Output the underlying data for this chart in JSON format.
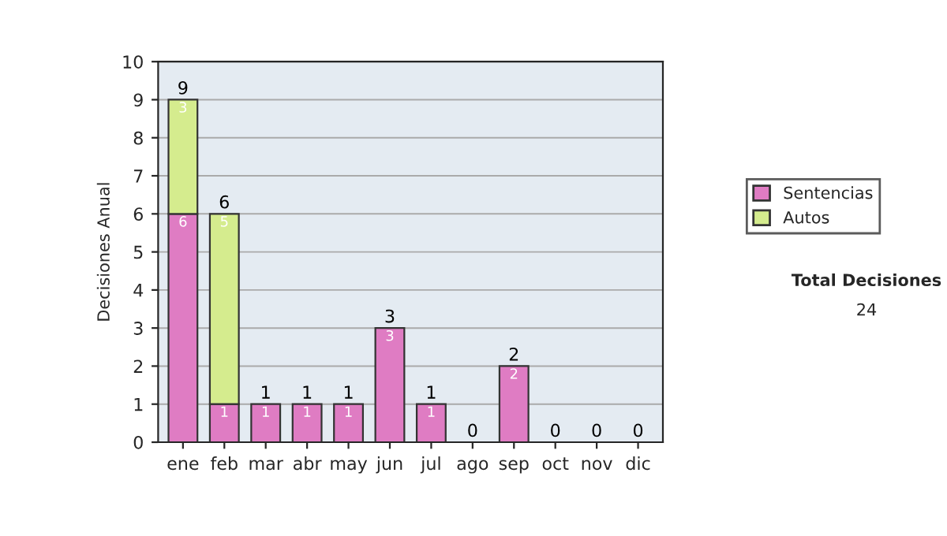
{
  "chart_data": {
    "type": "bar",
    "stacked": true,
    "ylabel": "Decisiones Anual",
    "categories": [
      "ene",
      "feb",
      "mar",
      "abr",
      "may",
      "jun",
      "jul",
      "ago",
      "sep",
      "oct",
      "nov",
      "dic"
    ],
    "series": [
      {
        "name": "Sentencias",
        "color": "#df7cc3",
        "values": [
          6,
          1,
          1,
          1,
          1,
          3,
          1,
          0,
          2,
          0,
          0,
          0
        ],
        "value_labels": [
          "6",
          "1",
          "1",
          "1",
          "1",
          "3",
          "1",
          null,
          "2",
          null,
          null,
          null
        ]
      },
      {
        "name": "Autos",
        "color": "#d5ec8e",
        "values": [
          3,
          5,
          0,
          0,
          0,
          0,
          0,
          0,
          0,
          0,
          0,
          0
        ],
        "value_labels": [
          "3",
          "5",
          null,
          null,
          null,
          null,
          null,
          null,
          null,
          null,
          null,
          null
        ]
      }
    ],
    "totals": [
      "9",
      "6",
      "1",
      "1",
      "1",
      "3",
      "1",
      "0",
      "2",
      "0",
      "0",
      "0"
    ],
    "ylim": [
      0,
      10
    ],
    "yticks": [
      0,
      1,
      2,
      3,
      4,
      5,
      6,
      7,
      8,
      9,
      10
    ],
    "grid": "y",
    "legend": "right",
    "annotations": [
      "Total Decisiones",
      "24"
    ]
  }
}
